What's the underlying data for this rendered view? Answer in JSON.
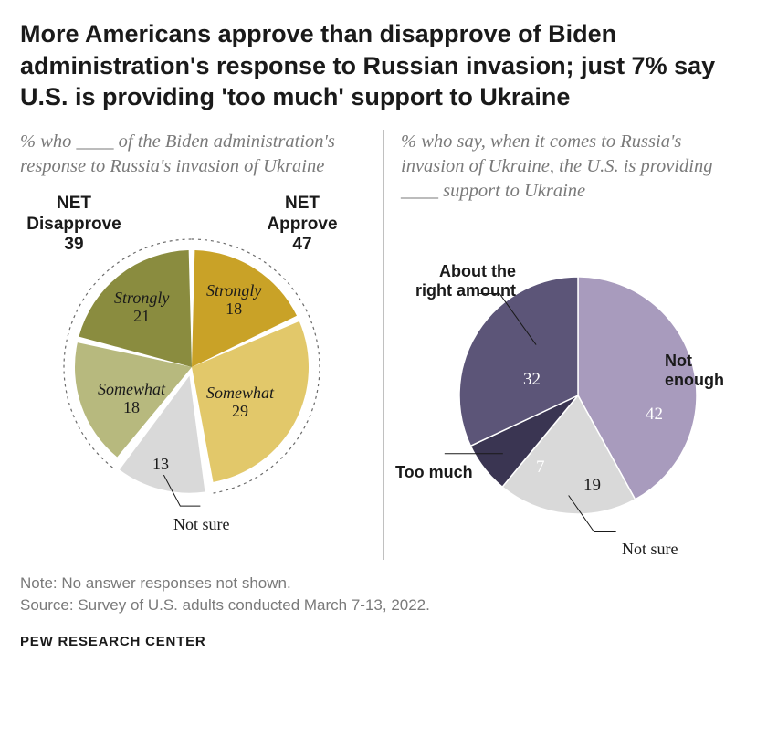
{
  "title": "More Americans approve than disapprove of Biden administration's response to Russian invasion; just 7% say U.S. is providing 'too much' support to Ukraine",
  "left": {
    "subtitle": "% who ____ of the Biden administration's response to Russia's invasion of Ukraine",
    "type": "pie",
    "net_disapprove": {
      "label": "NET Disapprove",
      "value": 39
    },
    "net_approve": {
      "label": "NET Approve",
      "value": 47
    },
    "slices": {
      "strongly_approve": {
        "label": "Strongly",
        "value": 18,
        "color": "#c9a227"
      },
      "somewhat_approve": {
        "label": "Somewhat",
        "value": 29,
        "color": "#e2c86a"
      },
      "not_sure": {
        "label": "Not sure",
        "value": 13,
        "color": "#d9d9d9"
      },
      "somewhat_disapprove": {
        "label": "Somewhat",
        "value": 18,
        "color": "#b7b97e"
      },
      "strongly_disapprove": {
        "label": "Strongly",
        "value": 21,
        "color": "#8a8c3f"
      }
    },
    "style": {
      "radius": 128,
      "gap_deg": 3,
      "explode_not_sure": 10,
      "dashed_ring": {
        "radius": 140,
        "stroke": "#6b6b6b",
        "dash": "3,4",
        "width": 1.2
      }
    }
  },
  "right": {
    "subtitle": "% who say, when it comes to Russia's invasion of Ukraine, the U.S. is providing ____ support to Ukraine",
    "type": "pie",
    "slices": {
      "not_enough": {
        "label": "Not enough",
        "value": 42,
        "color": "#a89bbd"
      },
      "not_sure": {
        "label": "Not sure",
        "value": 19,
        "color": "#d9d9d9"
      },
      "too_much": {
        "label": "Too much",
        "value": 7,
        "color": "#3a3552"
      },
      "right_amount": {
        "label": "About the right amount",
        "value": 32,
        "color": "#5c5578"
      }
    },
    "style": {
      "radius": 130
    }
  },
  "footer": {
    "note": "Note: No answer responses not shown.",
    "source": "Source: Survey of U.S. adults conducted March 7-13, 2022."
  },
  "brand": "PEW RESEARCH CENTER",
  "colors": {
    "background": "#ffffff",
    "title": "#1a1a1a",
    "subtitle": "#7a7a7a",
    "footer": "#7a7a7a"
  }
}
